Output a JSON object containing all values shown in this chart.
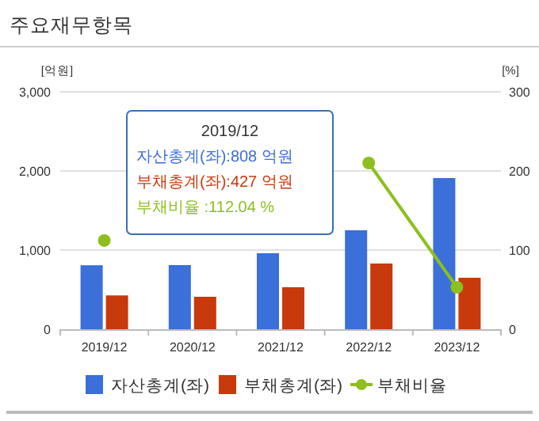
{
  "chart_data": {
    "type": "bar",
    "title": "주요재무항목",
    "ylabel": "[억원]",
    "y2label": "[%]",
    "categories": [
      "2019/12",
      "2020/12",
      "2021/12",
      "2022/12",
      "2023/12"
    ],
    "series": [
      {
        "name": "자산총계(좌)",
        "color": "#3b6fd9",
        "values": [
          808,
          810,
          960,
          1250,
          1910
        ]
      },
      {
        "name": "부채총계(좌)",
        "color": "#c8390b",
        "values": [
          427,
          410,
          530,
          830,
          650
        ]
      },
      {
        "name": "부채비율",
        "type": "line",
        "axis": "y2",
        "color": "#8dbf1e",
        "values": [
          112.04,
          null,
          null,
          210,
          53
        ]
      }
    ],
    "ylim": [
      0,
      3000
    ],
    "yticks": [
      {
        "value": 0,
        "label": "0"
      },
      {
        "value": 1000,
        "label": "1,000"
      },
      {
        "value": 2000,
        "label": "2,000"
      },
      {
        "value": 3000,
        "label": "3,000"
      }
    ],
    "y2lim": [
      0,
      300
    ],
    "y2ticks": [
      0,
      100,
      200,
      300
    ],
    "grid": "y",
    "legend": "bottom",
    "marker": "circle",
    "annotations": [
      "2019/12\n자산총계(좌):808 억원\n부채총계(좌):427 억원\n부채비율     :112.04 %"
    ]
  }
}
